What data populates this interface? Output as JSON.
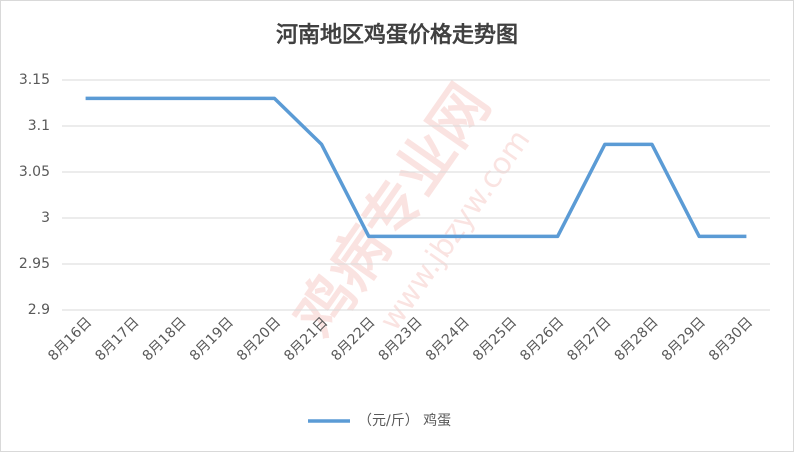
{
  "chart_data": {
    "type": "line",
    "title": "河南地区鸡蛋价格走势图",
    "categories": [
      "8月16日",
      "8月17日",
      "8月18日",
      "8月19日",
      "8月20日",
      "8月21日",
      "8月22日",
      "8月23日",
      "8月24日",
      "8月25日",
      "8月26日",
      "8月27日",
      "8月28日",
      "8月29日",
      "8月30日"
    ],
    "series": [
      {
        "name": "（元/斤） 鸡蛋",
        "color": "#5b9bd5",
        "values": [
          3.13,
          3.13,
          3.13,
          3.13,
          3.13,
          3.08,
          2.98,
          2.98,
          2.98,
          2.98,
          2.98,
          3.08,
          3.08,
          2.98,
          2.98
        ]
      }
    ],
    "ylim": [
      2.9,
      3.15
    ],
    "yticks": [
      2.9,
      2.95,
      3,
      3.05,
      3.1,
      3.15
    ],
    "grid": true,
    "legend": "bottom",
    "watermark": "鸡病专业网",
    "watermark_url": "www.jbzyw.com"
  }
}
